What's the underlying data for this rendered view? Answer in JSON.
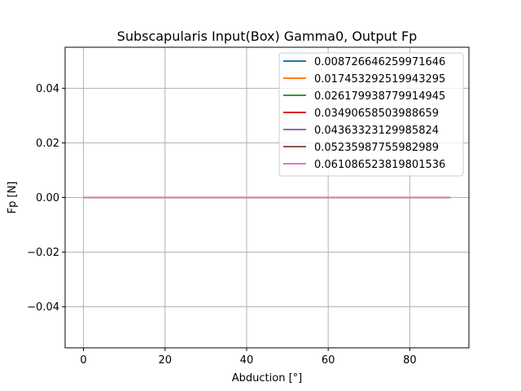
{
  "chart_data": {
    "type": "line",
    "title": "Subscapularis Input(Box) Gamma0, Output Fp",
    "xlabel": "Abduction [°]",
    "ylabel": "Fp [N]",
    "xlim": [
      -4.5,
      94.5
    ],
    "ylim": [
      -0.055,
      0.055
    ],
    "xticks": [
      0,
      20,
      40,
      60,
      80
    ],
    "xtick_labels": [
      "0",
      "20",
      "40",
      "60",
      "80"
    ],
    "yticks": [
      -0.04,
      -0.02,
      0.0,
      0.02,
      0.04
    ],
    "ytick_labels": [
      "−0.04",
      "−0.02",
      "0.00",
      "0.02",
      "0.04"
    ],
    "grid": true,
    "legend_position": "upper-right",
    "x": [
      0,
      90
    ],
    "series": [
      {
        "name": "0.008726646259971646",
        "color": "#1f77b4",
        "values": [
          0,
          0
        ]
      },
      {
        "name": "0.017453292519943295",
        "color": "#ff7f0e",
        "values": [
          0,
          0
        ]
      },
      {
        "name": "0.026179938779914945",
        "color": "#2ca02c",
        "values": [
          0,
          0
        ]
      },
      {
        "name": "0.03490658503988659",
        "color": "#d62728",
        "values": [
          0,
          0
        ]
      },
      {
        "name": "0.04363323129985824",
        "color": "#9467bd",
        "values": [
          0,
          0
        ]
      },
      {
        "name": "0.05235987755982989",
        "color": "#8c564b",
        "values": [
          0,
          0
        ]
      },
      {
        "name": "0.061086523819801536",
        "color": "#e377c2",
        "values": [
          0,
          0
        ]
      }
    ]
  }
}
